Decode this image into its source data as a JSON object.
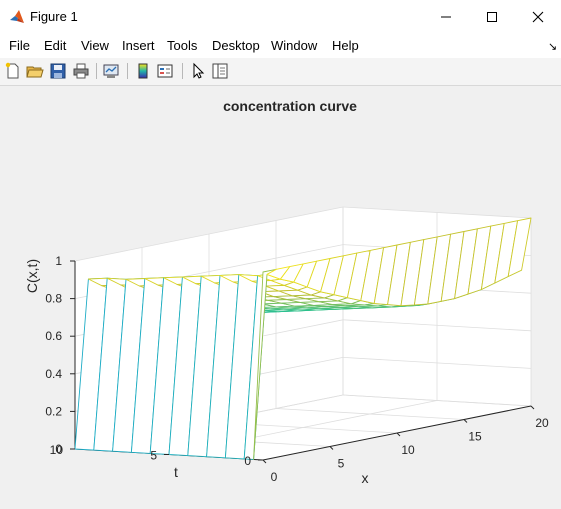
{
  "window": {
    "title": "Figure 1"
  },
  "menu": {
    "items": [
      "File",
      "Edit",
      "View",
      "Insert",
      "Tools",
      "Desktop",
      "Window",
      "Help"
    ]
  },
  "toolbar": {
    "tools": [
      "new-figure-icon",
      "open-file-icon",
      "save-icon",
      "print-icon",
      "link-plot-icon",
      "colorbar-icon",
      "legend-icon",
      "edit-plot-pointer-icon",
      "property-inspector-icon"
    ]
  },
  "chart_data": {
    "type": "surface",
    "title": "concentration curve",
    "xlabel": "x",
    "ylabel": "t",
    "zlabel": "C(x,t)",
    "xlim": [
      0,
      20
    ],
    "ylim": [
      0,
      10
    ],
    "zlim": [
      0,
      1
    ],
    "xticks": [
      "0",
      "5",
      "10",
      "15",
      "20"
    ],
    "yticks": [
      "0",
      "5",
      "10"
    ],
    "zticks": [
      "0",
      "0.2",
      "0.4",
      "0.6",
      "0.8",
      "1"
    ],
    "grid": true,
    "colormap": "parula",
    "x": [
      0,
      1,
      2,
      3,
      4,
      5,
      6,
      7,
      8,
      9,
      10,
      11,
      12,
      13,
      14,
      15,
      16,
      17,
      18,
      19,
      20
    ],
    "t": [
      0,
      0.5,
      1,
      2,
      3,
      4,
      5,
      6,
      7,
      8,
      9,
      10
    ],
    "C": [
      [
        1,
        0,
        0,
        0,
        0,
        0,
        0,
        0,
        0,
        0,
        0,
        0
      ],
      [
        1,
        0.97,
        0.96,
        0.96,
        0.95,
        0.94,
        0.93,
        0.92,
        0.91,
        0.9,
        0.9,
        0.89
      ],
      [
        1,
        0.93,
        0.92,
        0.91,
        0.9,
        0.89,
        0.88,
        0.87,
        0.86,
        0.85,
        0.85,
        0.84
      ],
      [
        1,
        0.9,
        0.88,
        0.87,
        0.86,
        0.85,
        0.84,
        0.83,
        0.82,
        0.81,
        0.8,
        0.8
      ],
      [
        1,
        0.86,
        0.84,
        0.83,
        0.82,
        0.81,
        0.8,
        0.79,
        0.78,
        0.77,
        0.76,
        0.76
      ],
      [
        1,
        0.82,
        0.8,
        0.79,
        0.78,
        0.77,
        0.76,
        0.75,
        0.74,
        0.73,
        0.72,
        0.72
      ],
      [
        1,
        0.79,
        0.77,
        0.76,
        0.75,
        0.74,
        0.73,
        0.72,
        0.71,
        0.7,
        0.69,
        0.69
      ],
      [
        1,
        0.76,
        0.74,
        0.73,
        0.72,
        0.71,
        0.7,
        0.69,
        0.68,
        0.67,
        0.66,
        0.66
      ],
      [
        1,
        0.73,
        0.71,
        0.7,
        0.69,
        0.68,
        0.67,
        0.66,
        0.65,
        0.64,
        0.63,
        0.63
      ],
      [
        1,
        0.7,
        0.69,
        0.68,
        0.67,
        0.66,
        0.65,
        0.64,
        0.63,
        0.62,
        0.61,
        0.61
      ],
      [
        1,
        0.68,
        0.67,
        0.66,
        0.65,
        0.64,
        0.63,
        0.62,
        0.61,
        0.6,
        0.6,
        0.59
      ],
      [
        1,
        0.66,
        0.65,
        0.64,
        0.63,
        0.62,
        0.61,
        0.6,
        0.59,
        0.58,
        0.58,
        0.57
      ],
      [
        1,
        0.65,
        0.64,
        0.63,
        0.62,
        0.61,
        0.6,
        0.59,
        0.58,
        0.57,
        0.57,
        0.56
      ],
      [
        1,
        0.64,
        0.63,
        0.62,
        0.61,
        0.6,
        0.59,
        0.58,
        0.57,
        0.56,
        0.56,
        0.55
      ],
      [
        1,
        0.64,
        0.63,
        0.62,
        0.61,
        0.6,
        0.59,
        0.58,
        0.57,
        0.56,
        0.55,
        0.55
      ],
      [
        1,
        0.64,
        0.63,
        0.62,
        0.61,
        0.6,
        0.59,
        0.58,
        0.57,
        0.57,
        0.56,
        0.55
      ],
      [
        1,
        0.65,
        0.64,
        0.63,
        0.62,
        0.61,
        0.6,
        0.59,
        0.58,
        0.57,
        0.57,
        0.56
      ],
      [
        1,
        0.66,
        0.65,
        0.64,
        0.63,
        0.62,
        0.61,
        0.6,
        0.59,
        0.58,
        0.58,
        0.57
      ],
      [
        1,
        0.68,
        0.67,
        0.66,
        0.65,
        0.64,
        0.63,
        0.62,
        0.61,
        0.6,
        0.59,
        0.59
      ],
      [
        1,
        0.7,
        0.69,
        0.68,
        0.67,
        0.66,
        0.65,
        0.64,
        0.63,
        0.62,
        0.61,
        0.61
      ],
      [
        1,
        0.72,
        0.71,
        0.7,
        0.69,
        0.68,
        0.67,
        0.66,
        0.65,
        0.64,
        0.63,
        0.63
      ]
    ]
  }
}
